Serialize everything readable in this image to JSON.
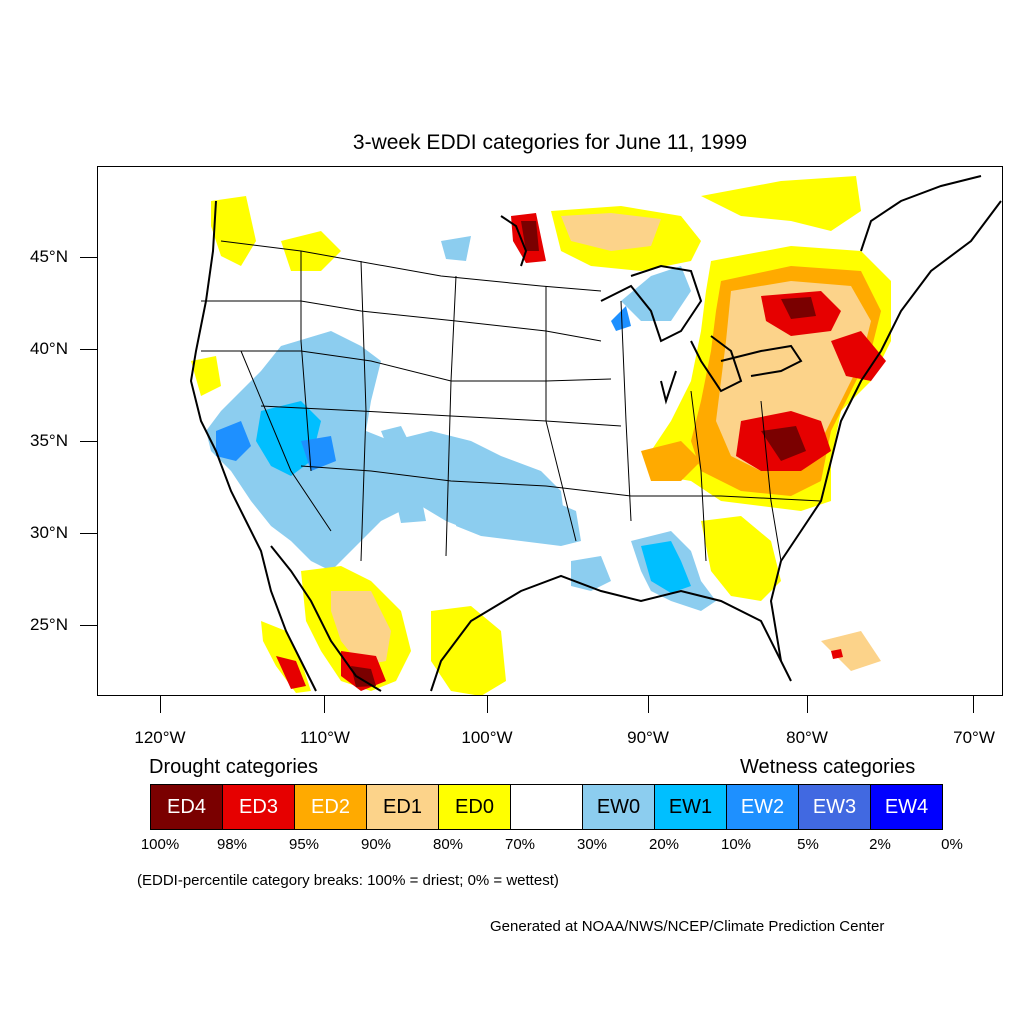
{
  "title": "3-week EDDI categories for June 11, 1999",
  "map": {
    "lat_labels": [
      "45°N",
      "40°N",
      "35°N",
      "30°N",
      "25°N"
    ],
    "lon_labels": [
      "120°W",
      "110°W",
      "100°W",
      "90°W",
      "80°W",
      "70°W"
    ],
    "colors": {
      "ED4": "#7a0000",
      "ED3": "#e60000",
      "ED2": "#ffaa00",
      "ED1": "#fcd38a",
      "ED0": "#ffff00",
      "normal": "#ffffff",
      "EW0": "#8ccdef",
      "EW1": "#00bfff",
      "EW2": "#1e90ff",
      "EW3": "#4169e1",
      "EW4": "#0000ff"
    }
  },
  "legend": {
    "drought_heading": "Drought categories",
    "wetness_heading": "Wetness categories",
    "categories": [
      {
        "label": "ED4",
        "color": "#7a0000",
        "text_color": "#ffffff"
      },
      {
        "label": "ED3",
        "color": "#e60000",
        "text_color": "#ffffff"
      },
      {
        "label": "ED2",
        "color": "#ffaa00",
        "text_color": "#ffffff"
      },
      {
        "label": "ED1",
        "color": "#fcd38a",
        "text_color": "#000000"
      },
      {
        "label": "ED0",
        "color": "#ffff00",
        "text_color": "#000000"
      },
      {
        "label": "",
        "color": "#ffffff",
        "text_color": "#000000"
      },
      {
        "label": "EW0",
        "color": "#8ccdef",
        "text_color": "#000000"
      },
      {
        "label": "EW1",
        "color": "#00bfff",
        "text_color": "#000000"
      },
      {
        "label": "EW2",
        "color": "#1e90ff",
        "text_color": "#ffffff"
      },
      {
        "label": "EW3",
        "color": "#4169e1",
        "text_color": "#ffffff"
      },
      {
        "label": "EW4",
        "color": "#0000ff",
        "text_color": "#ffffff"
      }
    ],
    "percent_breaks": [
      "100%",
      "98%",
      "95%",
      "90%",
      "80%",
      "70%",
      "30%",
      "20%",
      "10%",
      "5%",
      "2%",
      "0%"
    ],
    "note": "(EDDI-percentile category breaks: 100% = driest; 0% = wettest)"
  },
  "credit": "Generated at NOAA/NWS/NCEP/Climate Prediction Center"
}
